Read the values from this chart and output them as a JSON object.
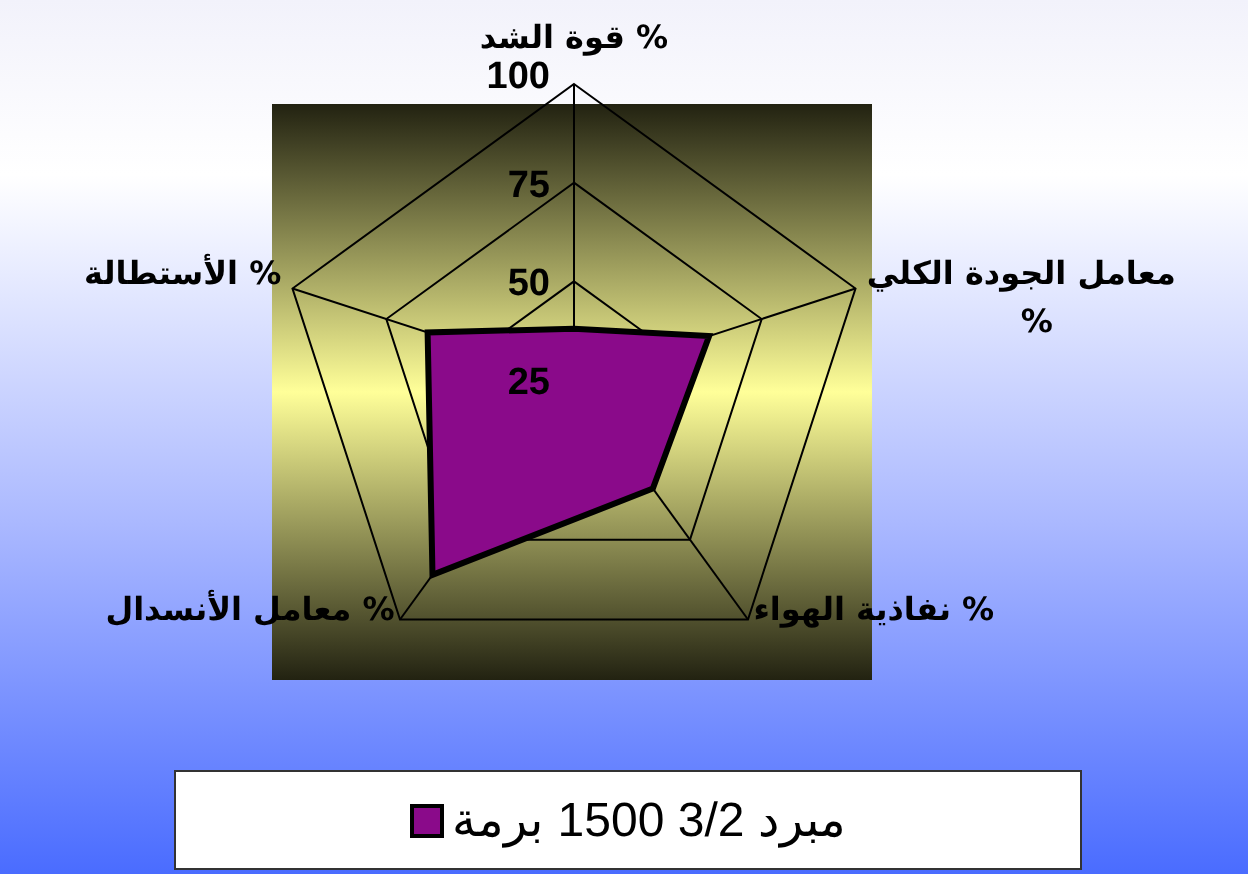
{
  "chart_data": {
    "type": "radar",
    "categories": [
      "قوة الشد %",
      "معامل الجودة الكلي %",
      "نفاذية الهواء %",
      "معامل الأنسدال %",
      "الأستطالة %"
    ],
    "series": [
      {
        "name": "مبرد 3/2 1500 برمة",
        "color": "#8a0a8a",
        "values": [
          38,
          61,
          59,
          86,
          64
        ]
      }
    ],
    "ylim": [
      25,
      100
    ],
    "yticks": [
      25,
      50,
      75,
      100
    ],
    "grid": true,
    "legend": "bottom"
  }
}
